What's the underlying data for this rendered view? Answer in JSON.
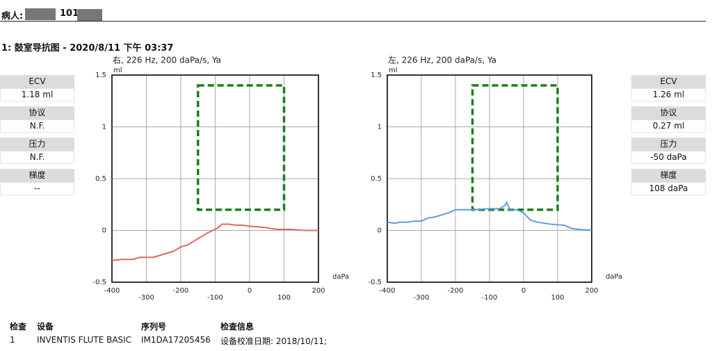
{
  "header": {
    "label": "病人:",
    "id": "101"
  },
  "section_title": "1: 鼓室导抗图 - 2020/8/11 下午 03:37",
  "left_panel": [
    {
      "label": "ECV",
      "value": "1.18 ml"
    },
    {
      "label": "协议",
      "value": "N.F."
    },
    {
      "label": "压力",
      "value": "N.F."
    },
    {
      "label": "梯度",
      "value": "--"
    }
  ],
  "right_panel": [
    {
      "label": "ECV",
      "value": "1.26 ml"
    },
    {
      "label": "协议",
      "value": "0.27 ml"
    },
    {
      "label": "压力",
      "value": "-50 daPa"
    },
    {
      "label": "梯度",
      "value": "108 daPa"
    }
  ],
  "chart_data": [
    {
      "type": "line",
      "title": "右, 226 Hz, 200 daPa/s, Ya",
      "y_label": "ml",
      "x_label": "daPa",
      "x": [
        -400,
        -370,
        -340,
        -320,
        -280,
        -250,
        -220,
        -200,
        -180,
        -160,
        -140,
        -120,
        -100,
        -90,
        -80,
        -60,
        -40,
        -20,
        0,
        40,
        80,
        120,
        160,
        200
      ],
      "series": [
        {
          "color": "#e06666",
          "values": [
            -0.29,
            -0.28,
            -0.28,
            -0.26,
            -0.26,
            -0.23,
            -0.2,
            -0.16,
            -0.14,
            -0.1,
            -0.06,
            -0.02,
            0.01,
            0.03,
            0.06,
            0.06,
            0.05,
            0.05,
            0.04,
            0.03,
            0.01,
            0.01,
            0,
            0
          ]
        }
      ],
      "target_region": {
        "x": [
          -150,
          100
        ],
        "y": [
          0.2,
          1.4
        ],
        "color": "#1a7f1a"
      },
      "xlim": [
        -400,
        200
      ],
      "ylim": [
        -0.5,
        1.5
      ],
      "xticks": [
        -400,
        -300,
        -200,
        -100,
        0,
        100,
        200
      ],
      "yticks": [
        1.5,
        1,
        0.5,
        0,
        -0.5
      ],
      "grid": true
    },
    {
      "type": "line",
      "title": "左, 226 Hz, 200 daPa/s, Ya",
      "y_label": "ml",
      "x_label": "daPa",
      "x": [
        -400,
        -380,
        -360,
        -340,
        -320,
        -300,
        -280,
        -260,
        -240,
        -220,
        -200,
        -150,
        -100,
        -70,
        -55,
        -50,
        -40,
        -20,
        0,
        20,
        40,
        80,
        120,
        140,
        160,
        200
      ],
      "series": [
        {
          "color": "#5b9be0",
          "values": [
            0.08,
            0.07,
            0.08,
            0.08,
            0.09,
            0.09,
            0.12,
            0.13,
            0.15,
            0.17,
            0.2,
            0.2,
            0.21,
            0.21,
            0.24,
            0.27,
            0.2,
            0.2,
            0.17,
            0.1,
            0.08,
            0.06,
            0.05,
            0.02,
            0.01,
            0
          ]
        }
      ],
      "target_region": {
        "x": [
          -150,
          100
        ],
        "y": [
          0.2,
          1.4
        ],
        "color": "#1a7f1a"
      },
      "xlim": [
        -400,
        200
      ],
      "ylim": [
        -0.5,
        1.5
      ],
      "xticks": [
        -400,
        -300,
        -200,
        -100,
        0,
        100,
        200
      ],
      "yticks": [
        1.5,
        1,
        0.5,
        0,
        -0.5
      ],
      "grid": true
    }
  ],
  "table": {
    "headers": [
      "检查",
      "设备",
      "序列号",
      "检查信息"
    ],
    "rows": [
      [
        "1",
        "INVENTIS FLUTE BASIC",
        "IM1DA17205456",
        "设备校准日期: 2018/10/11;"
      ]
    ]
  }
}
